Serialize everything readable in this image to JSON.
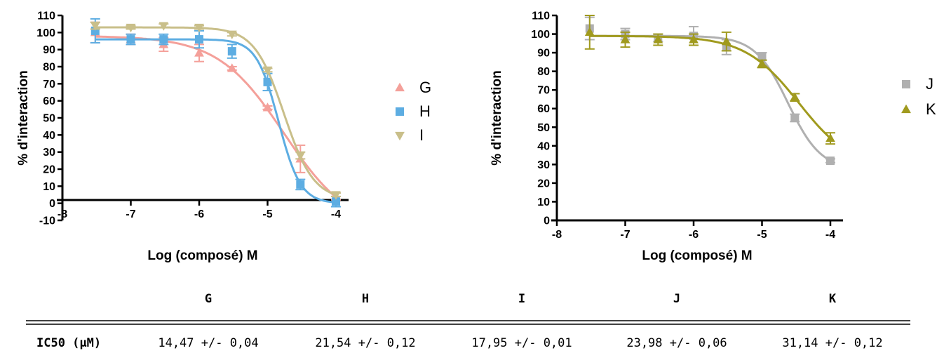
{
  "chart_data": [
    {
      "type": "line",
      "xlabel": "Log (composé) M",
      "ylabel": "% d'interaction",
      "xlim": [
        -8,
        -4
      ],
      "ylim": [
        -10,
        110
      ],
      "x_ticks": [
        "-8",
        "-7",
        "-6",
        "-5",
        "-4"
      ],
      "y_ticks": [
        "110",
        "100",
        "90",
        "80",
        "70",
        "60",
        "50",
        "40",
        "30",
        "20",
        "10",
        "0",
        "-10"
      ],
      "legend_position": "right",
      "series": [
        {
          "name": "G",
          "color": "#f4a09a",
          "marker": "triangle-up",
          "x": [
            -7.52,
            -7.0,
            -6.52,
            -6.0,
            -5.52,
            -5.0,
            -4.52,
            -4.0
          ],
          "y": [
            100,
            96,
            93,
            88,
            79,
            56,
            26,
            4
          ],
          "err": [
            6,
            3,
            4,
            5,
            1,
            1,
            8,
            2
          ]
        },
        {
          "name": "H",
          "color": "#5dade2",
          "marker": "square",
          "x": [
            -7.52,
            -7.0,
            -6.52,
            -6.0,
            -5.52,
            -5.0,
            -4.52,
            -4.0
          ],
          "y": [
            101,
            96,
            96,
            96,
            89,
            71,
            11,
            1
          ],
          "err": [
            7,
            3,
            3,
            5,
            4,
            5,
            3,
            3
          ]
        },
        {
          "name": "I",
          "color": "#c9bf8a",
          "marker": "triangle-down",
          "x": [
            -7.52,
            -7.0,
            -6.52,
            -6.0,
            -5.52,
            -5.0,
            -4.52,
            -4.0
          ],
          "y": [
            104,
            103,
            104,
            103,
            99,
            78,
            28,
            5
          ],
          "err": [
            2,
            1,
            1,
            1,
            1,
            1,
            2,
            1
          ]
        }
      ]
    },
    {
      "type": "line",
      "xlabel": "Log (composé) M",
      "ylabel": "% d'interaction",
      "xlim": [
        -8,
        -4
      ],
      "ylim": [
        0,
        110
      ],
      "x_ticks": [
        "-8",
        "-7",
        "-6",
        "-5",
        "-4"
      ],
      "y_ticks": [
        "110",
        "100",
        "90",
        "80",
        "70",
        "60",
        "50",
        "40",
        "30",
        "20",
        "10",
        "0"
      ],
      "legend_position": "right",
      "series": [
        {
          "name": "J",
          "color": "#b0b0b0",
          "marker": "square",
          "x": [
            -7.52,
            -7.0,
            -6.52,
            -6.0,
            -5.52,
            -5.0,
            -4.52,
            -4.0
          ],
          "y": [
            103,
            100,
            98,
            99,
            93,
            88,
            55,
            32
          ],
          "err": [
            6,
            3,
            2,
            5,
            4,
            2,
            2,
            1
          ]
        },
        {
          "name": "K",
          "color": "#a09a1e",
          "marker": "triangle-up",
          "x": [
            -7.52,
            -7.0,
            -6.52,
            -6.0,
            -5.52,
            -5.0,
            -4.52,
            -4.0
          ],
          "y": [
            101,
            97,
            97,
            97,
            96,
            84,
            66,
            44
          ],
          "err": [
            9,
            4,
            3,
            3,
            5,
            2,
            2,
            3
          ]
        }
      ]
    }
  ],
  "table": {
    "columns": [
      "G",
      "H",
      "I",
      "J",
      "K"
    ],
    "row_label": "IC50 (µM)",
    "values": [
      "14,47 +/- 0,04",
      "21,54 +/- 0,12",
      "17,95 +/- 0,01",
      "23,98 +/- 0,06",
      "31,14 +/- 0,12"
    ]
  }
}
